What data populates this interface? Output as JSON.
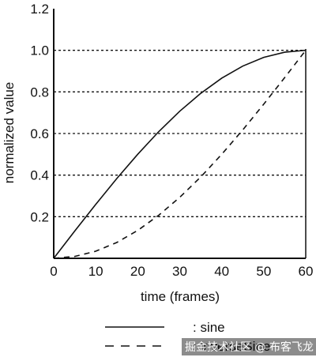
{
  "chart_data": {
    "type": "line",
    "title": "",
    "xlabel": "time (frames)",
    "ylabel": "normalized value",
    "xlim": [
      0,
      60
    ],
    "ylim": [
      0,
      1.2
    ],
    "xticks": [
      0,
      10,
      20,
      30,
      40,
      50,
      60
    ],
    "yticks": [
      0.2,
      0.4,
      0.6,
      0.8,
      1.0,
      1.2
    ],
    "ytick_labels": [
      "0.2",
      "0.4",
      "0.6",
      "0.8",
      "1.0",
      "1.2"
    ],
    "grid": "horizontal dotted",
    "legend_position": "bottom",
    "x": [
      0,
      5,
      10,
      15,
      20,
      25,
      30,
      35,
      40,
      45,
      50,
      55,
      60
    ],
    "series": [
      {
        "name": ": sine",
        "style": "solid",
        "values": [
          0,
          0.131,
          0.259,
          0.383,
          0.5,
          0.609,
          0.707,
          0.793,
          0.866,
          0.924,
          0.966,
          0.991,
          1.0
        ]
      },
      {
        "name": ": inverseSine",
        "style": "dashed",
        "values": [
          0,
          0.009,
          0.034,
          0.076,
          0.134,
          0.207,
          0.293,
          0.391,
          0.5,
          0.617,
          0.741,
          0.869,
          1.0
        ]
      }
    ],
    "color": "#111111"
  },
  "watermark": "掘金技术社区 @ 布客飞龙"
}
